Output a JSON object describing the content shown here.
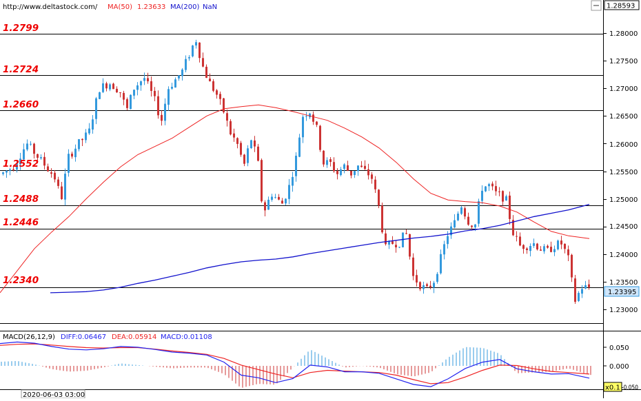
{
  "header": {
    "url": "http://www.deltastock.com/",
    "ma50_label": "MA(50)",
    "ma50_value": "1.23633",
    "ma200_label": "MA(200)",
    "ma200_value": "NaN"
  },
  "price_axis": {
    "top_value": "1.28593",
    "current_value": "1.23395",
    "ticks": [
      "1.28000",
      "1.27500",
      "1.27000",
      "1.26500",
      "1.26000",
      "1.25500",
      "1.25000",
      "1.24500",
      "1.24000",
      "1.23500",
      "1.23000"
    ]
  },
  "levels": [
    "1.2799",
    "1.2724",
    "1.2660",
    "1.2552",
    "1.2488",
    "1.2446",
    "1.2340"
  ],
  "macd": {
    "label": "MACD(26,12,9)",
    "diff": "DIFF:0.06467",
    "dea": "DEA:0.05914",
    "macd": "MACD:0.01108",
    "ticks": [
      "0.050",
      "0.000",
      "-0.050"
    ],
    "zoom_label": "x0.1"
  },
  "footer": {
    "date": "2020-06-03 03:00"
  },
  "colors": {
    "up": "#3399dd",
    "down": "#cc3333",
    "ma50": "#ee2222",
    "ma200": "#1111cc",
    "level_text": "#ee0000",
    "grid": "#000000",
    "diff": "#2222ee",
    "dea": "#ee2222"
  },
  "chart_data": {
    "type": "candlestick",
    "price_range": [
      1.2265,
      1.2859
    ],
    "macd_range": [
      -0.06,
      0.072
    ],
    "ma50": [
      [
        0,
        1.233
      ],
      [
        25,
        1.237
      ],
      [
        50,
        1.241
      ],
      [
        75,
        1.244
      ],
      [
        100,
        1.2468
      ],
      [
        125,
        1.25
      ],
      [
        150,
        1.253
      ],
      [
        175,
        1.2558
      ],
      [
        200,
        1.258
      ],
      [
        225,
        1.2595
      ],
      [
        250,
        1.261
      ],
      [
        275,
        1.263
      ],
      [
        300,
        1.265
      ],
      [
        325,
        1.2663
      ],
      [
        350,
        1.2667
      ],
      [
        375,
        1.267
      ],
      [
        400,
        1.2665
      ],
      [
        425,
        1.2658
      ],
      [
        450,
        1.265
      ],
      [
        475,
        1.2642
      ],
      [
        500,
        1.2628
      ],
      [
        525,
        1.2612
      ],
      [
        550,
        1.2592
      ],
      [
        575,
        1.2566
      ],
      [
        600,
        1.2536
      ],
      [
        625,
        1.251
      ],
      [
        650,
        1.2498
      ],
      [
        675,
        1.2495
      ],
      [
        700,
        1.2493
      ],
      [
        725,
        1.2487
      ],
      [
        750,
        1.2476
      ],
      [
        775,
        1.2458
      ],
      [
        800,
        1.2441
      ],
      [
        825,
        1.2433
      ],
      [
        855,
        1.2428
      ]
    ],
    "ma200": [
      [
        73,
        1.233
      ],
      [
        100,
        1.2331
      ],
      [
        125,
        1.2332
      ],
      [
        150,
        1.2335
      ],
      [
        175,
        1.234
      ],
      [
        200,
        1.2347
      ],
      [
        225,
        1.2353
      ],
      [
        250,
        1.236
      ],
      [
        275,
        1.2367
      ],
      [
        300,
        1.2375
      ],
      [
        325,
        1.2381
      ],
      [
        350,
        1.2386
      ],
      [
        375,
        1.2389
      ],
      [
        400,
        1.2391
      ],
      [
        425,
        1.2395
      ],
      [
        450,
        1.2401
      ],
      [
        475,
        1.2406
      ],
      [
        500,
        1.2411
      ],
      [
        525,
        1.2416
      ],
      [
        550,
        1.2421
      ],
      [
        575,
        1.2425
      ],
      [
        600,
        1.2429
      ],
      [
        625,
        1.2432
      ],
      [
        650,
        1.2436
      ],
      [
        675,
        1.2442
      ],
      [
        700,
        1.2446
      ],
      [
        725,
        1.2452
      ],
      [
        750,
        1.246
      ],
      [
        775,
        1.2468
      ],
      [
        800,
        1.2474
      ],
      [
        825,
        1.248
      ],
      [
        855,
        1.249
      ]
    ],
    "diff": [
      [
        0,
        0.06
      ],
      [
        25,
        0.064
      ],
      [
        50,
        0.061
      ],
      [
        75,
        0.052
      ],
      [
        100,
        0.045
      ],
      [
        125,
        0.043
      ],
      [
        150,
        0.046
      ],
      [
        175,
        0.052
      ],
      [
        200,
        0.05
      ],
      [
        225,
        0.044
      ],
      [
        250,
        0.037
      ],
      [
        275,
        0.034
      ],
      [
        300,
        0.029
      ],
      [
        325,
        0.01
      ],
      [
        350,
        -0.025
      ],
      [
        375,
        -0.032
      ],
      [
        400,
        -0.045
      ],
      [
        425,
        -0.034
      ],
      [
        450,
        0.002
      ],
      [
        475,
        -0.003
      ],
      [
        500,
        -0.016
      ],
      [
        525,
        -0.016
      ],
      [
        550,
        -0.02
      ],
      [
        575,
        -0.035
      ],
      [
        600,
        -0.05
      ],
      [
        625,
        -0.056
      ],
      [
        650,
        -0.035
      ],
      [
        675,
        -0.007
      ],
      [
        700,
        0.01
      ],
      [
        725,
        0.017
      ],
      [
        750,
        -0.008
      ],
      [
        775,
        -0.016
      ],
      [
        800,
        -0.022
      ],
      [
        825,
        -0.021
      ],
      [
        855,
        -0.033
      ]
    ],
    "dea": [
      [
        0,
        0.055
      ],
      [
        25,
        0.058
      ],
      [
        50,
        0.059
      ],
      [
        75,
        0.056
      ],
      [
        100,
        0.052
      ],
      [
        125,
        0.049
      ],
      [
        150,
        0.048
      ],
      [
        175,
        0.049
      ],
      [
        200,
        0.049
      ],
      [
        225,
        0.045
      ],
      [
        250,
        0.04
      ],
      [
        275,
        0.036
      ],
      [
        300,
        0.031
      ],
      [
        325,
        0.02
      ],
      [
        350,
        0.002
      ],
      [
        375,
        -0.01
      ],
      [
        400,
        -0.022
      ],
      [
        425,
        -0.032
      ],
      [
        450,
        -0.018
      ],
      [
        475,
        -0.012
      ],
      [
        500,
        -0.014
      ],
      [
        525,
        -0.016
      ],
      [
        550,
        -0.018
      ],
      [
        575,
        -0.025
      ],
      [
        600,
        -0.037
      ],
      [
        625,
        -0.048
      ],
      [
        650,
        -0.045
      ],
      [
        675,
        -0.03
      ],
      [
        700,
        -0.012
      ],
      [
        725,
        0.002
      ],
      [
        750,
        0.001
      ],
      [
        775,
        -0.008
      ],
      [
        800,
        -0.015
      ],
      [
        825,
        -0.018
      ],
      [
        855,
        -0.022
      ]
    ],
    "keypoints": [
      [
        3,
        1.2545
      ],
      [
        20,
        1.2558
      ],
      [
        40,
        1.26
      ],
      [
        60,
        1.257
      ],
      [
        80,
        1.254
      ],
      [
        90,
        1.25
      ],
      [
        100,
        1.2575
      ],
      [
        115,
        1.26
      ],
      [
        130,
        1.262
      ],
      [
        145,
        1.27
      ],
      [
        160,
        1.271
      ],
      [
        175,
        1.2695
      ],
      [
        185,
        1.266
      ],
      [
        195,
        1.27
      ],
      [
        210,
        1.272
      ],
      [
        225,
        1.268
      ],
      [
        235,
        1.264
      ],
      [
        245,
        1.27
      ],
      [
        255,
        1.2715
      ],
      [
        265,
        1.273
      ],
      [
        275,
        1.276
      ],
      [
        285,
        1.279
      ],
      [
        295,
        1.274
      ],
      [
        305,
        1.271
      ],
      [
        315,
        1.269
      ],
      [
        325,
        1.266
      ],
      [
        335,
        1.262
      ],
      [
        345,
        1.26
      ],
      [
        355,
        1.256
      ],
      [
        365,
        1.261
      ],
      [
        375,
        1.257
      ],
      [
        380,
        1.25
      ],
      [
        385,
        1.248
      ],
      [
        395,
        1.251
      ],
      [
        410,
        1.249
      ],
      [
        420,
        1.252
      ],
      [
        430,
        1.257
      ],
      [
        440,
        1.265
      ],
      [
        450,
        1.266
      ],
      [
        460,
        1.263
      ],
      [
        470,
        1.2565
      ],
      [
        480,
        1.2565
      ],
      [
        490,
        1.2545
      ],
      [
        500,
        1.256
      ],
      [
        510,
        1.2545
      ],
      [
        520,
        1.256
      ],
      [
        530,
        1.255
      ],
      [
        540,
        1.254
      ],
      [
        550,
        1.249
      ],
      [
        560,
        1.241
      ],
      [
        570,
        1.242
      ],
      [
        580,
        1.242
      ],
      [
        590,
        1.244
      ],
      [
        600,
        1.236
      ],
      [
        610,
        1.2345
      ],
      [
        620,
        1.2335
      ],
      [
        630,
        1.235
      ],
      [
        640,
        1.239
      ],
      [
        650,
        1.2435
      ],
      [
        660,
        1.2455
      ],
      [
        670,
        1.249
      ],
      [
        680,
        1.246
      ],
      [
        690,
        1.245
      ],
      [
        700,
        1.252
      ],
      [
        710,
        1.2525
      ],
      [
        720,
        1.251
      ],
      [
        735,
        1.25
      ],
      [
        745,
        1.244
      ],
      [
        755,
        1.2415
      ],
      [
        765,
        1.2415
      ],
      [
        775,
        1.242
      ],
      [
        785,
        1.241
      ],
      [
        795,
        1.2405
      ],
      [
        805,
        1.2415
      ],
      [
        815,
        1.242
      ],
      [
        825,
        1.2395
      ],
      [
        835,
        1.2315
      ],
      [
        845,
        1.234
      ],
      [
        855,
        1.234
      ]
    ]
  }
}
